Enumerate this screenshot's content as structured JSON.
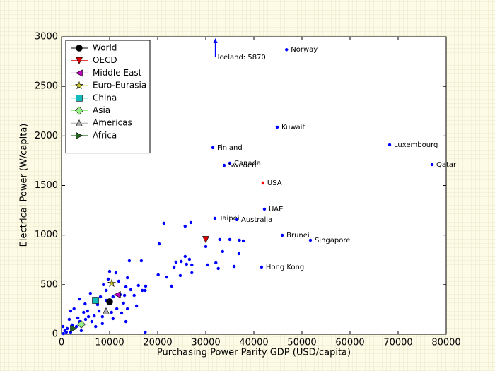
{
  "chart_data": {
    "type": "scatter",
    "x_label": "Purchasing Power Parity GDP (USD/capita)",
    "y_label": "Electrical Power (W/capita)",
    "xlim": [
      0,
      80000
    ],
    "ylim": [
      0,
      3000
    ],
    "xticks": [
      0,
      10000,
      20000,
      30000,
      40000,
      50000,
      60000,
      70000,
      80000
    ],
    "yticks": [
      0,
      500,
      1000,
      1500,
      2000,
      2500,
      3000
    ],
    "legend": "upper left",
    "series": [
      {
        "name": "World",
        "color": "#000000",
        "marker": "circle",
        "x": [
          10000
        ],
        "values": [
          328
        ]
      },
      {
        "name": "OECD",
        "color": "#dd0000",
        "marker": "triangle-down",
        "x": [
          30000
        ],
        "values": [
          955
        ]
      },
      {
        "name": "Middle East",
        "color": "#bb00bb",
        "marker": "triangle-left",
        "x": [
          11600
        ],
        "values": [
          399
        ]
      },
      {
        "name": "Euro-Eurasia",
        "color": "#cccc33",
        "marker": "star",
        "x": [
          10440
        ],
        "values": [
          513
        ]
      },
      {
        "name": "China",
        "color": "#11bbbb",
        "marker": "square",
        "x": [
          7060
        ],
        "values": [
          342
        ]
      },
      {
        "name": "Asia",
        "color": "#99ee88",
        "marker": "diamond",
        "x": [
          4120
        ],
        "values": [
          100
        ]
      },
      {
        "name": "Americas",
        "color": "#aaaaaa",
        "marker": "triangle-up",
        "x": [
          9260
        ],
        "values": [
          235
        ]
      },
      {
        "name": "Africa",
        "color": "#226622",
        "marker": "triangle-right",
        "x": [
          2500
        ],
        "values": [
          57
        ]
      }
    ],
    "labeled_points": {
      "labels": [
        "Norway",
        "Kuwait",
        "Finland",
        "Luxembourg",
        "Canada",
        "Sweden",
        "Qatar",
        "USA",
        "UAE",
        "Taipei",
        "Australia",
        "Brunei",
        "Singapore",
        "Hong Kong"
      ],
      "x": [
        46800,
        44850,
        31470,
        68240,
        35000,
        33820,
        77060,
        41900,
        42200,
        31900,
        36470,
        45900,
        51760,
        41600
      ],
      "values": [
        2870,
        2088,
        1882,
        1910,
        1725,
        1703,
        1711,
        1525,
        1262,
        1169,
        1155,
        998,
        948,
        677
      ],
      "colors": [
        "#0000ff",
        "#0000ff",
        "#0000ff",
        "#0000ff",
        "#0000ff",
        "#0000ff",
        "#0000ff",
        "#ff0000",
        "#0000ff",
        "#0000ff",
        "#0000ff",
        "#0000ff",
        "#0000ff",
        "#0000ff"
      ]
    },
    "other_points": {
      "color": "#0000ff",
      "x": [
        20300,
        21300,
        25700,
        26900,
        20100,
        21900,
        22900,
        23400,
        23800,
        24900,
        25700,
        26000,
        26600,
        27100,
        27100,
        24700,
        30000,
        30400,
        32100,
        32600,
        32900,
        33500,
        35000,
        35900,
        37000,
        36900,
        37800,
        17500,
        16000,
        16800,
        17400,
        16600,
        14100,
        17400,
        10000,
        11300,
        9700,
        11900,
        13400,
        13100,
        13700,
        8700,
        9300,
        8100,
        10700,
        12200,
        12900,
        14400,
        15100,
        15600,
        13700,
        12500,
        11500,
        10700,
        13400,
        7800,
        6800,
        6000,
        7500,
        5400,
        4600,
        4900,
        3700,
        5600,
        3400,
        2600,
        1900,
        1600,
        2200,
        1200,
        700,
        300,
        3100,
        4100,
        6300,
        8500,
        400,
        1900,
        1000,
        3800,
        5000,
        9300,
        8500,
        7100,
        10400
      ],
      "values": [
        912,
        1119,
        1090,
        1126,
        599,
        577,
        485,
        677,
        727,
        734,
        784,
        706,
        756,
        620,
        699,
        592,
        884,
        699,
        720,
        663,
        955,
        834,
        955,
        684,
        948,
        813,
        941,
        485,
        492,
        442,
        442,
        741,
        741,
        21,
        634,
        620,
        556,
        535,
        478,
        392,
        570,
        499,
        442,
        378,
        378,
        399,
        314,
        449,
        392,
        285,
        257,
        214,
        257,
        157,
        128,
        235,
        185,
        413,
        299,
        235,
        221,
        306,
        356,
        178,
        164,
        257,
        235,
        150,
        93,
        57,
        36,
        78,
        78,
        36,
        128,
        178,
        7,
        21,
        21,
        128,
        150,
        342,
        107,
        78,
        221
      ]
    },
    "annotations": [
      {
        "text": "Iceland: 5870",
        "x": 32000
      }
    ]
  }
}
